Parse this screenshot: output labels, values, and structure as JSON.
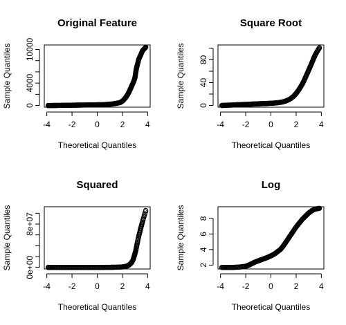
{
  "chart_data": [
    {
      "type": "scatter",
      "title": "Original Feature",
      "xlabel": "Theoretical Quantiles",
      "ylabel": "Sample Quantiles",
      "xlim": [
        -4.2,
        4.2
      ],
      "ylim": [
        -300,
        10800
      ],
      "xticks": [
        -4,
        -2,
        0,
        2,
        4
      ],
      "xtick_labels": [
        "-4",
        "-2",
        "0",
        "2",
        "4"
      ],
      "yticks": [
        0,
        2000,
        4000,
        6000,
        8000,
        10000
      ],
      "ytick_labels": [
        "0",
        "",
        "4000",
        "",
        "",
        "10000"
      ],
      "x": [
        -3.9,
        -3.6,
        -3.3,
        -3.0,
        -2.7,
        -2.4,
        -2.1,
        -1.8,
        -1.5,
        -1.2,
        -0.9,
        -0.6,
        -0.3,
        0.0,
        0.3,
        0.6,
        0.9,
        1.2,
        1.5,
        1.8,
        1.95,
        2.1,
        2.25,
        2.4,
        2.5,
        2.6,
        2.7,
        2.8,
        2.9,
        3.0,
        3.05,
        3.1,
        3.2,
        3.3,
        3.45,
        3.6,
        3.85
      ],
      "y": [
        0,
        0,
        10,
        20,
        30,
        40,
        50,
        60,
        70,
        80,
        90,
        100,
        110,
        120,
        140,
        170,
        210,
        280,
        380,
        520,
        700,
        1000,
        1400,
        1900,
        2300,
        2800,
        3300,
        3800,
        4300,
        5000,
        5800,
        6500,
        7400,
        8300,
        9000,
        9800,
        10400
      ]
    },
    {
      "type": "scatter",
      "title": "Square Root",
      "xlabel": "Theoretical Quantiles",
      "ylabel": "Sample Quantiles",
      "xlim": [
        -4.2,
        4.2
      ],
      "ylim": [
        -3,
        106
      ],
      "xticks": [
        -4,
        -2,
        0,
        2,
        4
      ],
      "xtick_labels": [
        "-4",
        "-2",
        "0",
        "2",
        "4"
      ],
      "yticks": [
        0,
        20,
        40,
        60,
        80,
        100
      ],
      "ytick_labels": [
        "0",
        "",
        "40",
        "",
        "80",
        ""
      ],
      "x": [
        -3.9,
        -3.6,
        -3.3,
        -3.0,
        -2.7,
        -2.4,
        -2.1,
        -1.8,
        -1.5,
        -1.2,
        -0.9,
        -0.6,
        -0.3,
        0.0,
        0.3,
        0.6,
        0.9,
        1.2,
        1.5,
        1.8,
        2.0,
        2.2,
        2.4,
        2.6,
        2.8,
        3.0,
        3.2,
        3.4,
        3.6,
        3.85
      ],
      "y": [
        0,
        0.3,
        0.6,
        0.9,
        1.2,
        1.5,
        1.8,
        2.1,
        2.4,
        2.7,
        3.0,
        3.3,
        3.6,
        3.9,
        4.3,
        5.0,
        6.0,
        8.0,
        11,
        16,
        21,
        27,
        34,
        42,
        52,
        62,
        72,
        83,
        92,
        101
      ]
    },
    {
      "type": "scatter",
      "title": "Squared",
      "xlabel": "Theoretical Quantiles",
      "ylabel": "Sample Quantiles",
      "xlim": [
        -4.2,
        4.2
      ],
      "ylim": [
        -3000000,
        112000000
      ],
      "xticks": [
        -4,
        -2,
        0,
        2,
        4
      ],
      "xtick_labels": [
        "-4",
        "-2",
        "0",
        "2",
        "4"
      ],
      "yticks": [
        0,
        20000000,
        40000000,
        60000000,
        80000000,
        100000000
      ],
      "ytick_labels": [
        "0e+00",
        "",
        "",
        "",
        "8e+07",
        ""
      ],
      "x": [
        -3.9,
        -3.5,
        -3.0,
        -2.5,
        -2.0,
        -1.5,
        -1.0,
        -0.5,
        0.0,
        0.5,
        1.0,
        1.5,
        2.0,
        2.3,
        2.5,
        2.7,
        2.85,
        2.95,
        3.05,
        3.15,
        3.3,
        3.45,
        3.6,
        3.85
      ],
      "y": [
        0,
        0,
        0,
        0,
        0,
        0,
        0,
        0,
        0,
        0,
        100000,
        300000,
        800000,
        2000000,
        4000000,
        8000000,
        14000000,
        22000000,
        30000000,
        42000000,
        58000000,
        72000000,
        85000000,
        105000000
      ]
    },
    {
      "type": "scatter",
      "title": "Log",
      "xlabel": "Theoretical Quantiles",
      "ylabel": "Sample Quantiles",
      "xlim": [
        -4.2,
        4.2
      ],
      "ylim": [
        1.5,
        9.5
      ],
      "xticks": [
        -4,
        -2,
        0,
        2,
        4
      ],
      "xtick_labels": [
        "-4",
        "-2",
        "0",
        "2",
        "4"
      ],
      "yticks": [
        2,
        4,
        6,
        8
      ],
      "ytick_labels": [
        "2",
        "4",
        "6",
        "8"
      ],
      "x": [
        -3.9,
        -3.5,
        -3.0,
        -2.5,
        -2.0,
        -1.75,
        -1.5,
        -1.25,
        -1.0,
        -0.75,
        -0.5,
        -0.25,
        0.0,
        0.25,
        0.5,
        0.75,
        1.0,
        1.25,
        1.5,
        1.75,
        2.0,
        2.25,
        2.5,
        2.75,
        3.0,
        3.25,
        3.5,
        3.85
      ],
      "y": [
        1.7,
        1.7,
        1.7,
        1.75,
        1.85,
        2.0,
        2.2,
        2.4,
        2.55,
        2.7,
        2.85,
        3.0,
        3.2,
        3.4,
        3.7,
        4.0,
        4.5,
        5.1,
        5.7,
        6.3,
        6.9,
        7.4,
        7.9,
        8.3,
        8.7,
        9.0,
        9.2,
        9.3
      ]
    }
  ]
}
